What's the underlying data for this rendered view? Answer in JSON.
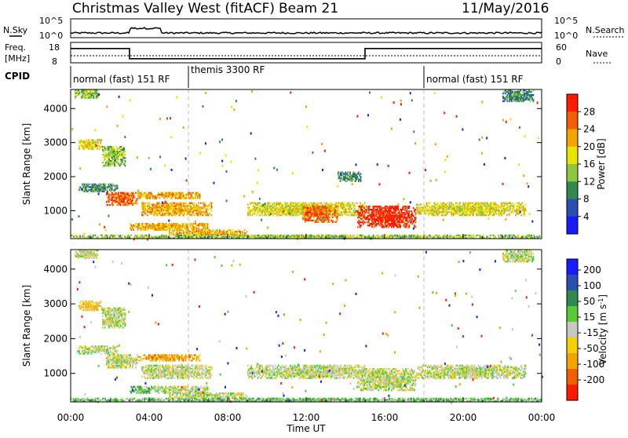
{
  "header": {
    "title": "Christmas Valley West (fitACF)",
    "beam": "Beam 21",
    "date": "11/May/2016"
  },
  "top_panels": {
    "nsky_label": "N.Sky",
    "nsearch_label": "N.Search",
    "nsky_ticks": [
      "10^5",
      "10^0"
    ],
    "nsearch_ticks": [
      "10^5",
      "10^0"
    ],
    "freq_label_1": "Freq.",
    "freq_label_2": "[MHz]",
    "freq_ticks": [
      "18",
      "8"
    ],
    "nave_label": "Nave",
    "nave_ticks": [
      "60",
      "0"
    ],
    "cpid_label": "CPID",
    "cpid_segments": [
      {
        "label": "normal (fast) 151 RF",
        "start_h": 0,
        "end_h": 6
      },
      {
        "label": "themis 3300 RF",
        "start_h": 6,
        "end_h": 18
      },
      {
        "label": "normal (fast) 151 RF",
        "start_h": 18,
        "end_h": 24
      }
    ],
    "freq_steps_mhz": [
      {
        "start_h": 0,
        "end_h": 3,
        "value": 15
      },
      {
        "start_h": 3,
        "end_h": 15,
        "value": 10
      },
      {
        "start_h": 15,
        "end_h": 24,
        "value": 15
      }
    ]
  },
  "chart_data": [
    {
      "type": "heatmap",
      "title": "Power",
      "ylabel": "Slant Range [km]",
      "xlabel": "Time UT",
      "colorbar_label": "Power [dB]",
      "colorbar_ticks": [
        4,
        8,
        12,
        16,
        20,
        24,
        28
      ],
      "colorbar_colors": [
        "#1a1aff",
        "#2a4fb0",
        "#2f8a4e",
        "#8dc63f",
        "#e9e400",
        "#f2a400",
        "#f06000",
        "#ff1a00"
      ],
      "xlim_h": [
        0,
        24
      ],
      "ylim_km": [
        180,
        4560
      ],
      "y_ticks": [
        1000,
        2000,
        3000,
        4000
      ],
      "x_ticks": [
        "00:00",
        "04:00",
        "08:00",
        "12:00",
        "16:00",
        "20:00",
        "00:00"
      ],
      "regions": [
        {
          "t0": 0.2,
          "t1": 1.4,
          "r0": 4300,
          "r1": 4560,
          "level": 3
        },
        {
          "t0": 0.4,
          "t1": 1.6,
          "r0": 2800,
          "r1": 3100,
          "level": 4
        },
        {
          "t0": 1.6,
          "t1": 2.8,
          "r0": 2300,
          "r1": 2900,
          "level": 3
        },
        {
          "t0": 0.4,
          "t1": 2.4,
          "r0": 1550,
          "r1": 1800,
          "level": 2
        },
        {
          "t0": 1.8,
          "t1": 3.4,
          "r0": 1150,
          "r1": 1550,
          "level": 6
        },
        {
          "t0": 3.4,
          "t1": 6.6,
          "r0": 1350,
          "r1": 1550,
          "level": 5
        },
        {
          "t0": 3.6,
          "t1": 7.2,
          "r0": 850,
          "r1": 1250,
          "level": 5
        },
        {
          "t0": 3.0,
          "t1": 7.0,
          "r0": 420,
          "r1": 640,
          "level": 5
        },
        {
          "t0": 5.0,
          "t1": 9.0,
          "r0": 280,
          "r1": 450,
          "level": 5
        },
        {
          "t0": 9.0,
          "t1": 15.0,
          "r0": 850,
          "r1": 1250,
          "level": 4
        },
        {
          "t0": 11.8,
          "t1": 13.6,
          "r0": 650,
          "r1": 1150,
          "level": 6
        },
        {
          "t0": 14.6,
          "t1": 17.6,
          "r0": 500,
          "r1": 1150,
          "level": 7
        },
        {
          "t0": 17.6,
          "t1": 23.2,
          "r0": 850,
          "r1": 1250,
          "level": 4
        },
        {
          "t0": 13.6,
          "t1": 14.8,
          "r0": 1850,
          "r1": 2150,
          "level": 2
        },
        {
          "t0": 22.0,
          "t1": 23.6,
          "r0": 4200,
          "r1": 4560,
          "level": 2
        },
        {
          "t0": 0.0,
          "t1": 24.0,
          "r0": 180,
          "r1": 300,
          "level": 3
        }
      ]
    },
    {
      "type": "heatmap",
      "title": "Velocity",
      "ylabel": "Slant Range [km]",
      "xlabel": "Time UT",
      "colorbar_label": "Velocity [m s^-1]",
      "colorbar_ticks": [
        200,
        100,
        50,
        15,
        -15,
        -50,
        -100,
        -200
      ],
      "colorbar_colors": [
        "#1a1aff",
        "#2a4fb0",
        "#2f8a4e",
        "#55cc33",
        "#c8c8c0",
        "#f5d000",
        "#f2a400",
        "#f06000",
        "#ff1a00"
      ],
      "xlim_h": [
        0,
        24
      ],
      "ylim_km": [
        180,
        4560
      ],
      "y_ticks": [
        1000,
        2000,
        3000,
        4000
      ],
      "x_ticks": [
        "00:00",
        "04:00",
        "08:00",
        "12:00",
        "16:00",
        "20:00",
        "00:00"
      ],
      "regions": [
        {
          "t0": 0.2,
          "t1": 1.4,
          "r0": 4300,
          "r1": 4560,
          "level": 4
        },
        {
          "t0": 0.4,
          "t1": 1.6,
          "r0": 2800,
          "r1": 3100,
          "level": 5
        },
        {
          "t0": 1.6,
          "t1": 2.8,
          "r0": 2300,
          "r1": 2900,
          "level": 4
        },
        {
          "t0": 0.4,
          "t1": 2.4,
          "r0": 1550,
          "r1": 1800,
          "level": 4
        },
        {
          "t0": 1.8,
          "t1": 3.4,
          "r0": 1150,
          "r1": 1550,
          "level": 4
        },
        {
          "t0": 3.4,
          "t1": 6.6,
          "r0": 1350,
          "r1": 1550,
          "level": 6
        },
        {
          "t0": 3.6,
          "t1": 7.2,
          "r0": 850,
          "r1": 1250,
          "level": 4
        },
        {
          "t0": 3.0,
          "t1": 4.2,
          "r0": 420,
          "r1": 640,
          "level": 3
        },
        {
          "t0": 4.2,
          "t1": 7.0,
          "r0": 420,
          "r1": 640,
          "level": 4
        },
        {
          "t0": 5.0,
          "t1": 9.0,
          "r0": 280,
          "r1": 450,
          "level": 4
        },
        {
          "t0": 9.0,
          "t1": 15.0,
          "r0": 850,
          "r1": 1250,
          "level": 4
        },
        {
          "t0": 14.6,
          "t1": 17.6,
          "r0": 500,
          "r1": 1150,
          "level": 4
        },
        {
          "t0": 17.6,
          "t1": 23.2,
          "r0": 850,
          "r1": 1250,
          "level": 4
        },
        {
          "t0": 22.0,
          "t1": 23.6,
          "r0": 4200,
          "r1": 4560,
          "level": 4
        },
        {
          "t0": 0.0,
          "t1": 24.0,
          "r0": 180,
          "r1": 300,
          "level": 3
        }
      ]
    }
  ]
}
